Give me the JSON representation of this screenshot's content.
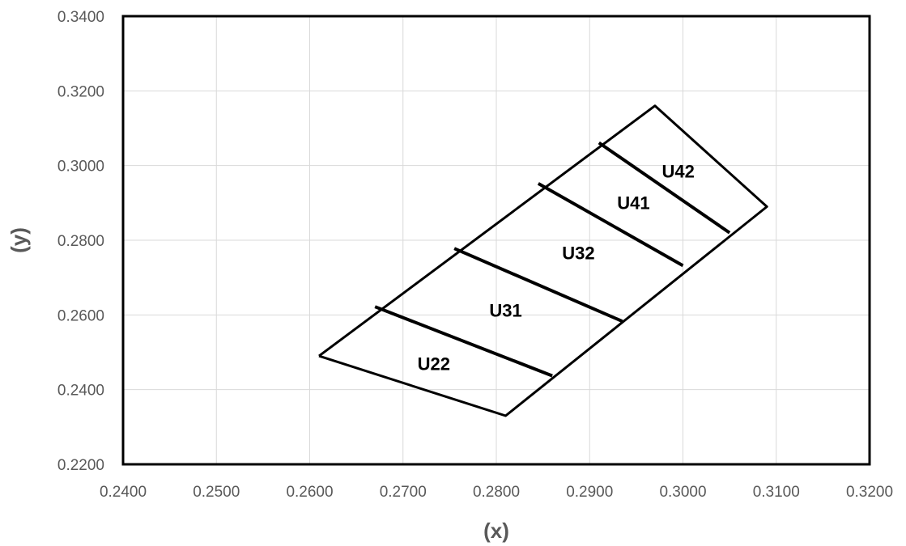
{
  "chart_data": {
    "type": "scatter",
    "title": "",
    "xlabel": "(x)",
    "ylabel": "(y)",
    "xlim": [
      0.24,
      0.32
    ],
    "ylim": [
      0.22,
      0.34
    ],
    "xticks": [
      0.24,
      0.25,
      0.26,
      0.27,
      0.28,
      0.29,
      0.3,
      0.31,
      0.32
    ],
    "yticks": [
      0.22,
      0.24,
      0.26,
      0.28,
      0.3,
      0.32,
      0.34
    ],
    "xtick_labels": [
      "0.2400",
      "0.2500",
      "0.2600",
      "0.2700",
      "0.2800",
      "0.2900",
      "0.3000",
      "0.3100",
      "0.3200"
    ],
    "ytick_labels": [
      "0.2200",
      "0.2400",
      "0.2600",
      "0.2800",
      "0.3000",
      "0.3200",
      "0.3400"
    ],
    "grid": true,
    "legend": false,
    "line_color": "#000000",
    "grid_color": "#d9d9d9",
    "outline": [
      [
        0.261,
        0.249
      ],
      [
        0.281,
        0.233
      ],
      [
        0.309,
        0.289
      ],
      [
        0.297,
        0.316
      ],
      [
        0.261,
        0.249
      ]
    ],
    "dividers": [
      [
        [
          0.267,
          0.2622
        ],
        [
          0.286,
          0.2437
        ]
      ],
      [
        [
          0.2755,
          0.2778
        ],
        [
          0.2935,
          0.2583
        ]
      ],
      [
        [
          0.2845,
          0.2952
        ],
        [
          0.3,
          0.2732
        ]
      ],
      [
        [
          0.291,
          0.3061
        ],
        [
          0.305,
          0.282
        ]
      ]
    ],
    "regions": [
      {
        "label": "U22",
        "x": 0.2733,
        "y": 0.2465
      },
      {
        "label": "U31",
        "x": 0.281,
        "y": 0.2608
      },
      {
        "label": "U32",
        "x": 0.2888,
        "y": 0.2762
      },
      {
        "label": "U41",
        "x": 0.2947,
        "y": 0.2896
      },
      {
        "label": "U42",
        "x": 0.2995,
        "y": 0.298
      }
    ]
  }
}
